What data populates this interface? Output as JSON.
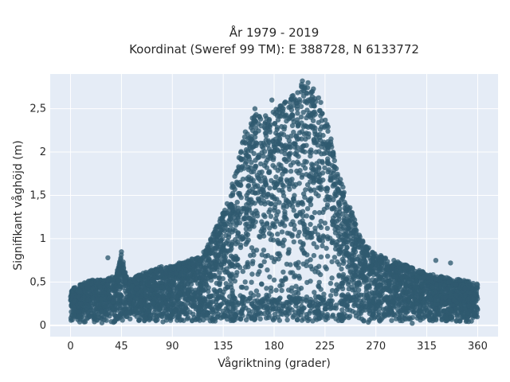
{
  "chart_data": {
    "type": "scatter",
    "title_line1": "År 1979 - 2019",
    "title_line2": "Koordinat (Sweref 99 TM): E 388728, N 6133772",
    "xlabel": "Vågriktning (grader)",
    "ylabel": "Signifikant våghöjd (m)",
    "xlim": [
      -18,
      378
    ],
    "ylim": [
      -0.13,
      2.9
    ],
    "x_ticks": [
      0,
      45,
      90,
      135,
      180,
      225,
      270,
      315,
      360
    ],
    "x_tick_labels": [
      "0",
      "45",
      "90",
      "135",
      "180",
      "225",
      "270",
      "315",
      "360"
    ],
    "y_ticks": [
      0,
      0.5,
      1,
      1.5,
      2,
      2.5
    ],
    "y_tick_labels": [
      "0",
      "0,5",
      "1",
      "1,5",
      "2",
      "2,5"
    ],
    "grid": true,
    "marker_color": "#2f5a70",
    "background_color": "#e5ecf6",
    "upper_envelope": {
      "x": [
        0,
        10,
        20,
        30,
        40,
        45,
        50,
        60,
        70,
        80,
        90,
        100,
        110,
        120,
        130,
        140,
        145,
        150,
        155,
        160,
        165,
        170,
        175,
        180,
        185,
        190,
        195,
        200,
        205,
        210,
        215,
        220,
        225,
        230,
        235,
        240,
        245,
        250,
        255,
        260,
        270,
        280,
        290,
        300,
        315,
        330,
        345,
        360
      ],
      "y": [
        0.45,
        0.5,
        0.55,
        0.55,
        0.6,
        0.85,
        0.55,
        0.6,
        0.65,
        0.7,
        0.7,
        0.75,
        0.8,
        0.9,
        1.2,
        1.5,
        1.75,
        2.05,
        2.3,
        2.4,
        2.5,
        2.5,
        2.45,
        2.5,
        2.55,
        2.6,
        2.65,
        2.75,
        2.82,
        2.8,
        2.75,
        2.65,
        2.45,
        2.2,
        1.9,
        1.65,
        1.45,
        1.3,
        1.1,
        0.95,
        0.85,
        0.8,
        0.75,
        0.7,
        0.62,
        0.58,
        0.55,
        0.5
      ]
    },
    "outliers": [
      {
        "x": 45,
        "y": 0.85
      },
      {
        "x": 33,
        "y": 0.78
      },
      {
        "x": 88,
        "y": 0.68
      },
      {
        "x": 96,
        "y": 0.72
      },
      {
        "x": 205,
        "y": 2.82
      },
      {
        "x": 210,
        "y": 2.8
      },
      {
        "x": 178,
        "y": 2.6
      },
      {
        "x": 163,
        "y": 2.5
      },
      {
        "x": 323,
        "y": 0.75
      },
      {
        "x": 336,
        "y": 0.72
      }
    ]
  }
}
